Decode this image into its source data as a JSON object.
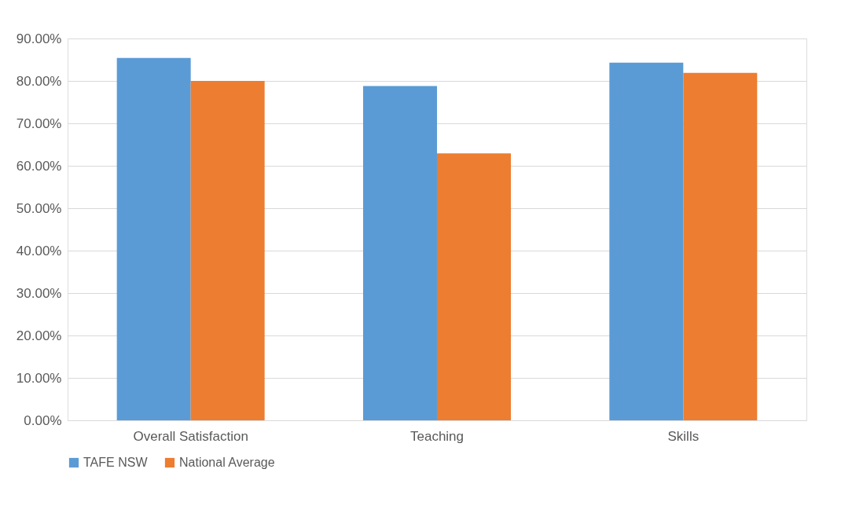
{
  "chart_data": {
    "type": "bar",
    "categories": [
      "Overall Satisfaction",
      "Teaching",
      "Skills"
    ],
    "series": [
      {
        "name": "TAFE NSW",
        "color": "#5b9bd5",
        "values": [
          85.4,
          78.8,
          84.3
        ]
      },
      {
        "name": "National Average",
        "color": "#ed7d31",
        "values": [
          80.0,
          62.9,
          81.9
        ]
      }
    ],
    "ylim": [
      0,
      90
    ],
    "yticks": [
      {
        "value": 0,
        "label": "0.00%"
      },
      {
        "value": 10,
        "label": "10.00%"
      },
      {
        "value": 20,
        "label": "20.00%"
      },
      {
        "value": 30,
        "label": "30.00%"
      },
      {
        "value": 40,
        "label": "40.00%"
      },
      {
        "value": 50,
        "label": "50.00%"
      },
      {
        "value": 60,
        "label": "60.00%"
      },
      {
        "value": 70,
        "label": "70.00%"
      },
      {
        "value": 80,
        "label": "80.00%"
      },
      {
        "value": 90,
        "label": "90.00%"
      }
    ],
    "grid": "y",
    "legend": "bottom"
  }
}
